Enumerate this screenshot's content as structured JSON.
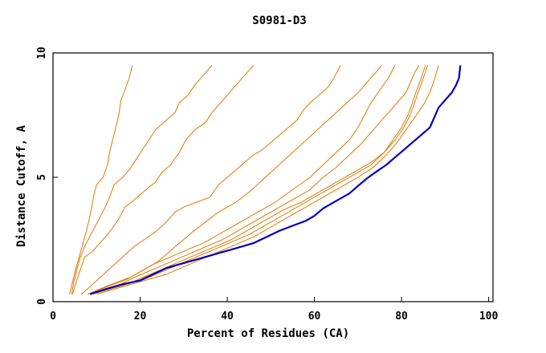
{
  "chart_data": {
    "type": "line",
    "title": "S0981-D3",
    "xlabel": "Percent of Residues (CA)",
    "ylabel": "Distance Cutoff, A",
    "xlim": [
      0,
      101
    ],
    "ylim": [
      0,
      10
    ],
    "x_ticks": [
      0,
      20,
      40,
      60,
      80,
      100
    ],
    "y_ticks": [
      0,
      5,
      10
    ],
    "grid": false,
    "legend": "none",
    "colors": {
      "highlight": "#0000c0",
      "other": "#e07800",
      "axis": "#000000"
    },
    "series": [
      {
        "highlight": false,
        "points": [
          [
            3.8,
            0.3
          ],
          [
            4.5,
            0.8
          ],
          [
            5.2,
            1.3
          ],
          [
            6.0,
            1.8
          ],
          [
            6.8,
            2.3
          ],
          [
            7.6,
            2.8
          ],
          [
            8.3,
            3.3
          ],
          [
            8.9,
            3.8
          ],
          [
            9.4,
            4.3
          ],
          [
            10.0,
            4.7
          ],
          [
            11.5,
            5.0
          ],
          [
            12.5,
            5.5
          ],
          [
            13.0,
            6.0
          ],
          [
            13.7,
            6.5
          ],
          [
            14.4,
            7.0
          ],
          [
            15.1,
            7.5
          ],
          [
            15.6,
            8.1
          ],
          [
            16.5,
            8.5
          ],
          [
            17.5,
            9.0
          ],
          [
            18.2,
            9.5
          ]
        ]
      },
      {
        "highlight": false,
        "points": [
          [
            4.3,
            0.3
          ],
          [
            4.8,
            0.8
          ],
          [
            5.5,
            1.3
          ],
          [
            6.3,
            1.8
          ],
          [
            7.5,
            2.3
          ],
          [
            9.0,
            2.8
          ],
          [
            10.5,
            3.3
          ],
          [
            12.0,
            3.8
          ],
          [
            13.2,
            4.3
          ],
          [
            14.0,
            4.7
          ],
          [
            16.0,
            5.0
          ],
          [
            17.5,
            5.3
          ],
          [
            19.0,
            5.7
          ],
          [
            20.5,
            6.1
          ],
          [
            22.0,
            6.5
          ],
          [
            23.5,
            6.9
          ],
          [
            26.0,
            7.3
          ],
          [
            28.0,
            7.6
          ],
          [
            29.0,
            8.0
          ],
          [
            31.0,
            8.3
          ],
          [
            32.5,
            8.7
          ],
          [
            34.5,
            9.1
          ],
          [
            36.5,
            9.5
          ]
        ]
      },
      {
        "highlight": false,
        "points": [
          [
            4.5,
            0.3
          ],
          [
            5.3,
            0.8
          ],
          [
            6.3,
            1.3
          ],
          [
            7.3,
            1.8
          ],
          [
            9.0,
            2.0
          ],
          [
            11.0,
            2.4
          ],
          [
            13.0,
            2.8
          ],
          [
            15.0,
            3.3
          ],
          [
            16.5,
            3.8
          ],
          [
            18.0,
            4.0
          ],
          [
            20.0,
            4.3
          ],
          [
            22.0,
            4.6
          ],
          [
            23.5,
            4.8
          ],
          [
            25.0,
            5.2
          ],
          [
            27.0,
            5.5
          ],
          [
            29.0,
            6.0
          ],
          [
            30.5,
            6.5
          ],
          [
            32.5,
            6.9
          ],
          [
            35.0,
            7.2
          ],
          [
            36.5,
            7.6
          ],
          [
            38.5,
            8.0
          ],
          [
            40.5,
            8.4
          ],
          [
            42.5,
            8.8
          ],
          [
            44.0,
            9.1
          ],
          [
            46.0,
            9.5
          ]
        ]
      },
      {
        "highlight": false,
        "points": [
          [
            6.5,
            0.3
          ],
          [
            8.5,
            0.6
          ],
          [
            11.0,
            1.0
          ],
          [
            13.5,
            1.4
          ],
          [
            16.0,
            1.8
          ],
          [
            18.5,
            2.2
          ],
          [
            21.0,
            2.5
          ],
          [
            23.5,
            2.8
          ],
          [
            26.0,
            3.2
          ],
          [
            28.0,
            3.6
          ],
          [
            30.0,
            3.8
          ],
          [
            33.0,
            4.0
          ],
          [
            36.0,
            4.2
          ],
          [
            38.0,
            4.7
          ],
          [
            40.0,
            5.0
          ],
          [
            42.0,
            5.3
          ],
          [
            44.0,
            5.6
          ],
          [
            46.0,
            5.9
          ],
          [
            48.0,
            6.1
          ],
          [
            50.0,
            6.4
          ],
          [
            52.0,
            6.7
          ],
          [
            54.0,
            7.0
          ],
          [
            56.0,
            7.3
          ],
          [
            57.5,
            7.7
          ],
          [
            59.0,
            8.0
          ],
          [
            61.0,
            8.3
          ],
          [
            63.0,
            8.6
          ],
          [
            64.5,
            9.0
          ],
          [
            66.0,
            9.5
          ]
        ]
      },
      {
        "highlight": false,
        "points": [
          [
            8.0,
            0.3
          ],
          [
            12.0,
            0.6
          ],
          [
            15.0,
            0.8
          ],
          [
            18.0,
            1.0
          ],
          [
            21.0,
            1.3
          ],
          [
            24.0,
            1.6
          ],
          [
            26.0,
            1.9
          ],
          [
            28.0,
            2.2
          ],
          [
            30.0,
            2.5
          ],
          [
            32.0,
            2.8
          ],
          [
            35.0,
            3.2
          ],
          [
            38.0,
            3.6
          ],
          [
            42.0,
            4.0
          ],
          [
            45.0,
            4.4
          ],
          [
            47.5,
            4.8
          ],
          [
            50.0,
            5.2
          ],
          [
            52.5,
            5.6
          ],
          [
            55.0,
            6.0
          ],
          [
            57.5,
            6.4
          ],
          [
            60.0,
            6.8
          ],
          [
            62.5,
            7.2
          ],
          [
            65.0,
            7.6
          ],
          [
            67.5,
            8.0
          ],
          [
            70.0,
            8.4
          ],
          [
            72.0,
            8.8
          ],
          [
            73.5,
            9.1
          ],
          [
            75.5,
            9.5
          ]
        ]
      },
      {
        "highlight": false,
        "points": [
          [
            8.0,
            0.3
          ],
          [
            11.0,
            0.5
          ],
          [
            14.0,
            0.7
          ],
          [
            17.0,
            0.9
          ],
          [
            20.0,
            1.2
          ],
          [
            23.0,
            1.5
          ],
          [
            27.0,
            1.8
          ],
          [
            31.0,
            2.1
          ],
          [
            35.0,
            2.4
          ],
          [
            39.0,
            2.8
          ],
          [
            43.0,
            3.2
          ],
          [
            47.0,
            3.6
          ],
          [
            51.0,
            4.0
          ],
          [
            55.0,
            4.5
          ],
          [
            59.0,
            5.0
          ],
          [
            62.0,
            5.5
          ],
          [
            65.0,
            6.0
          ],
          [
            68.0,
            6.5
          ],
          [
            70.0,
            7.0
          ],
          [
            71.5,
            7.5
          ],
          [
            73.0,
            8.0
          ],
          [
            75.0,
            8.5
          ],
          [
            77.0,
            9.0
          ],
          [
            78.5,
            9.5
          ]
        ]
      },
      {
        "highlight": false,
        "points": [
          [
            8.5,
            0.3
          ],
          [
            12.0,
            0.5
          ],
          [
            15.5,
            0.7
          ],
          [
            19.0,
            1.0
          ],
          [
            23.0,
            1.3
          ],
          [
            27.0,
            1.6
          ],
          [
            31.0,
            1.9
          ],
          [
            35.0,
            2.2
          ],
          [
            39.0,
            2.5
          ],
          [
            43.0,
            2.9
          ],
          [
            47.0,
            3.3
          ],
          [
            51.0,
            3.7
          ],
          [
            55.0,
            4.1
          ],
          [
            59.0,
            4.5
          ],
          [
            62.0,
            5.0
          ],
          [
            65.0,
            5.4
          ],
          [
            68.0,
            5.9
          ],
          [
            70.5,
            6.3
          ],
          [
            73.0,
            6.8
          ],
          [
            75.0,
            7.2
          ],
          [
            77.0,
            7.6
          ],
          [
            79.0,
            8.0
          ],
          [
            81.0,
            8.4
          ],
          [
            82.0,
            8.8
          ],
          [
            83.0,
            9.2
          ],
          [
            84.0,
            9.5
          ]
        ]
      },
      {
        "highlight": false,
        "points": [
          [
            9.0,
            0.3
          ],
          [
            13.0,
            0.5
          ],
          [
            17.0,
            0.7
          ],
          [
            21.0,
            1.0
          ],
          [
            25.0,
            1.3
          ],
          [
            29.0,
            1.6
          ],
          [
            33.0,
            1.9
          ],
          [
            37.0,
            2.2
          ],
          [
            41.0,
            2.5
          ],
          [
            45.0,
            2.9
          ],
          [
            49.0,
            3.3
          ],
          [
            53.0,
            3.7
          ],
          [
            57.0,
            4.0
          ],
          [
            61.0,
            4.4
          ],
          [
            65.0,
            4.8
          ],
          [
            69.0,
            5.2
          ],
          [
            73.0,
            5.6
          ],
          [
            76.0,
            6.0
          ],
          [
            78.0,
            6.5
          ],
          [
            80.0,
            7.0
          ],
          [
            81.5,
            7.5
          ],
          [
            82.5,
            8.0
          ],
          [
            83.5,
            8.5
          ],
          [
            84.5,
            9.0
          ],
          [
            85.5,
            9.5
          ]
        ]
      },
      {
        "highlight": false,
        "points": [
          [
            9.0,
            0.3
          ],
          [
            13.0,
            0.5
          ],
          [
            17.0,
            0.7
          ],
          [
            21.0,
            0.9
          ],
          [
            25.0,
            1.2
          ],
          [
            29.0,
            1.5
          ],
          [
            33.0,
            1.8
          ],
          [
            37.0,
            2.1
          ],
          [
            41.0,
            2.4
          ],
          [
            45.0,
            2.7
          ],
          [
            49.0,
            3.1
          ],
          [
            53.0,
            3.5
          ],
          [
            57.0,
            3.9
          ],
          [
            61.0,
            4.3
          ],
          [
            65.0,
            4.7
          ],
          [
            69.0,
            5.1
          ],
          [
            73.0,
            5.5
          ],
          [
            76.0,
            6.0
          ],
          [
            78.5,
            6.5
          ],
          [
            80.5,
            7.0
          ],
          [
            82.0,
            7.5
          ],
          [
            83.0,
            8.0
          ],
          [
            84.0,
            8.5
          ],
          [
            85.0,
            9.0
          ],
          [
            86.0,
            9.5
          ]
        ]
      },
      {
        "highlight": false,
        "points": [
          [
            10.0,
            0.3
          ],
          [
            14.0,
            0.5
          ],
          [
            18.0,
            0.7
          ],
          [
            22.0,
            0.9
          ],
          [
            26.0,
            1.1
          ],
          [
            30.0,
            1.4
          ],
          [
            34.0,
            1.7
          ],
          [
            38.0,
            2.0
          ],
          [
            42.0,
            2.3
          ],
          [
            46.0,
            2.6
          ],
          [
            50.0,
            3.0
          ],
          [
            54.0,
            3.4
          ],
          [
            58.0,
            3.8
          ],
          [
            62.0,
            4.2
          ],
          [
            66.0,
            4.6
          ],
          [
            70.0,
            5.0
          ],
          [
            73.5,
            5.4
          ],
          [
            76.5,
            5.9
          ],
          [
            79.0,
            6.4
          ],
          [
            81.0,
            6.9
          ],
          [
            83.0,
            7.4
          ],
          [
            85.0,
            7.9
          ],
          [
            86.5,
            8.4
          ],
          [
            87.5,
            8.9
          ],
          [
            88.5,
            9.5
          ]
        ]
      },
      {
        "highlight": true,
        "points": [
          [
            8.5,
            0.3
          ],
          [
            12.0,
            0.5
          ],
          [
            16.0,
            0.7
          ],
          [
            20.0,
            0.85
          ],
          [
            23.0,
            1.1
          ],
          [
            26.0,
            1.35
          ],
          [
            30.0,
            1.55
          ],
          [
            34.0,
            1.75
          ],
          [
            38.0,
            1.95
          ],
          [
            42.0,
            2.15
          ],
          [
            46.0,
            2.35
          ],
          [
            49.0,
            2.6
          ],
          [
            52.0,
            2.85
          ],
          [
            55.0,
            3.05
          ],
          [
            58.0,
            3.25
          ],
          [
            60.0,
            3.45
          ],
          [
            62.0,
            3.75
          ],
          [
            65.0,
            4.05
          ],
          [
            68.0,
            4.35
          ],
          [
            70.0,
            4.65
          ],
          [
            72.0,
            4.95
          ],
          [
            74.0,
            5.2
          ],
          [
            76.5,
            5.5
          ],
          [
            78.5,
            5.8
          ],
          [
            80.5,
            6.1
          ],
          [
            82.5,
            6.4
          ],
          [
            84.5,
            6.7
          ],
          [
            86.5,
            7.0
          ],
          [
            87.5,
            7.4
          ],
          [
            88.5,
            7.8
          ],
          [
            90.0,
            8.1
          ],
          [
            91.5,
            8.4
          ],
          [
            92.5,
            8.7
          ],
          [
            93.2,
            9.0
          ],
          [
            93.5,
            9.5
          ]
        ]
      }
    ]
  }
}
